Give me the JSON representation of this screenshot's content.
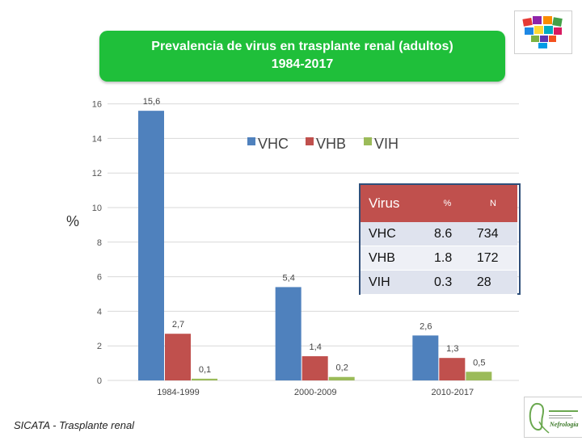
{
  "header": {
    "title_line1": "Prevalencia de virus en trasplante renal (adultos)",
    "title_line2": "1984-2017"
  },
  "chart_data": {
    "type": "bar",
    "categories": [
      "1984-1999",
      "2000-2009",
      "2010-2017"
    ],
    "series": [
      {
        "name": "VHC",
        "values": [
          15.6,
          5.4,
          2.6
        ],
        "labels": [
          "15,6",
          "5,4",
          "2,6"
        ],
        "color": "#4f81bd"
      },
      {
        "name": "VHB",
        "values": [
          2.7,
          1.4,
          1.3
        ],
        "labels": [
          "2,7",
          "1,4",
          "1,3"
        ],
        "color": "#c0504d"
      },
      {
        "name": "VIH",
        "values": [
          0.1,
          0.2,
          0.5
        ],
        "labels": [
          "0,1",
          "0,2",
          "0,5"
        ],
        "color": "#9bbb59"
      }
    ],
    "ylabel": "%",
    "ylim": [
      0,
      16
    ],
    "yticks": [
      0,
      2,
      4,
      6,
      8,
      10,
      12,
      14,
      16
    ],
    "grid": true,
    "legend_position": "top-right"
  },
  "stats_table": {
    "headers": [
      "Virus",
      "%",
      "N"
    ],
    "rows": [
      [
        "VHC",
        "8.6",
        "734"
      ],
      [
        "VHB",
        "1.8",
        "172"
      ],
      [
        "VIH",
        "0.3",
        "28"
      ]
    ],
    "header_color": "#c0504d"
  },
  "footer": {
    "source": "SICATA - Trasplante renal",
    "logo_text": "Nefrología"
  },
  "colors": {
    "title_background": "#1fbf3a",
    "table_border": "#2f4f7a"
  }
}
